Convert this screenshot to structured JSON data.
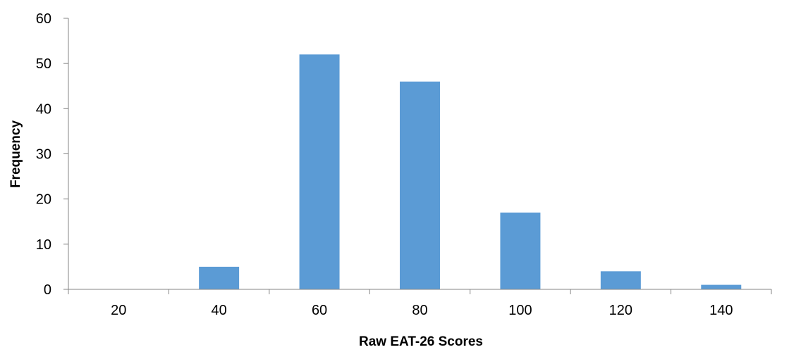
{
  "colors": {
    "bar": "#5b9bd5",
    "axis": "#868686",
    "text": "#000000"
  },
  "chart_data": {
    "type": "bar",
    "categories": [
      "20",
      "40",
      "60",
      "80",
      "100",
      "120",
      "140"
    ],
    "values": [
      0,
      5,
      52,
      46,
      17,
      4,
      1
    ],
    "xlabel": "Raw EAT-26 Scores",
    "ylabel": "Frequency",
    "ylim": [
      0,
      60
    ],
    "yticks": [
      0,
      10,
      20,
      30,
      40,
      50,
      60
    ],
    "grid": false,
    "legend": "none"
  }
}
